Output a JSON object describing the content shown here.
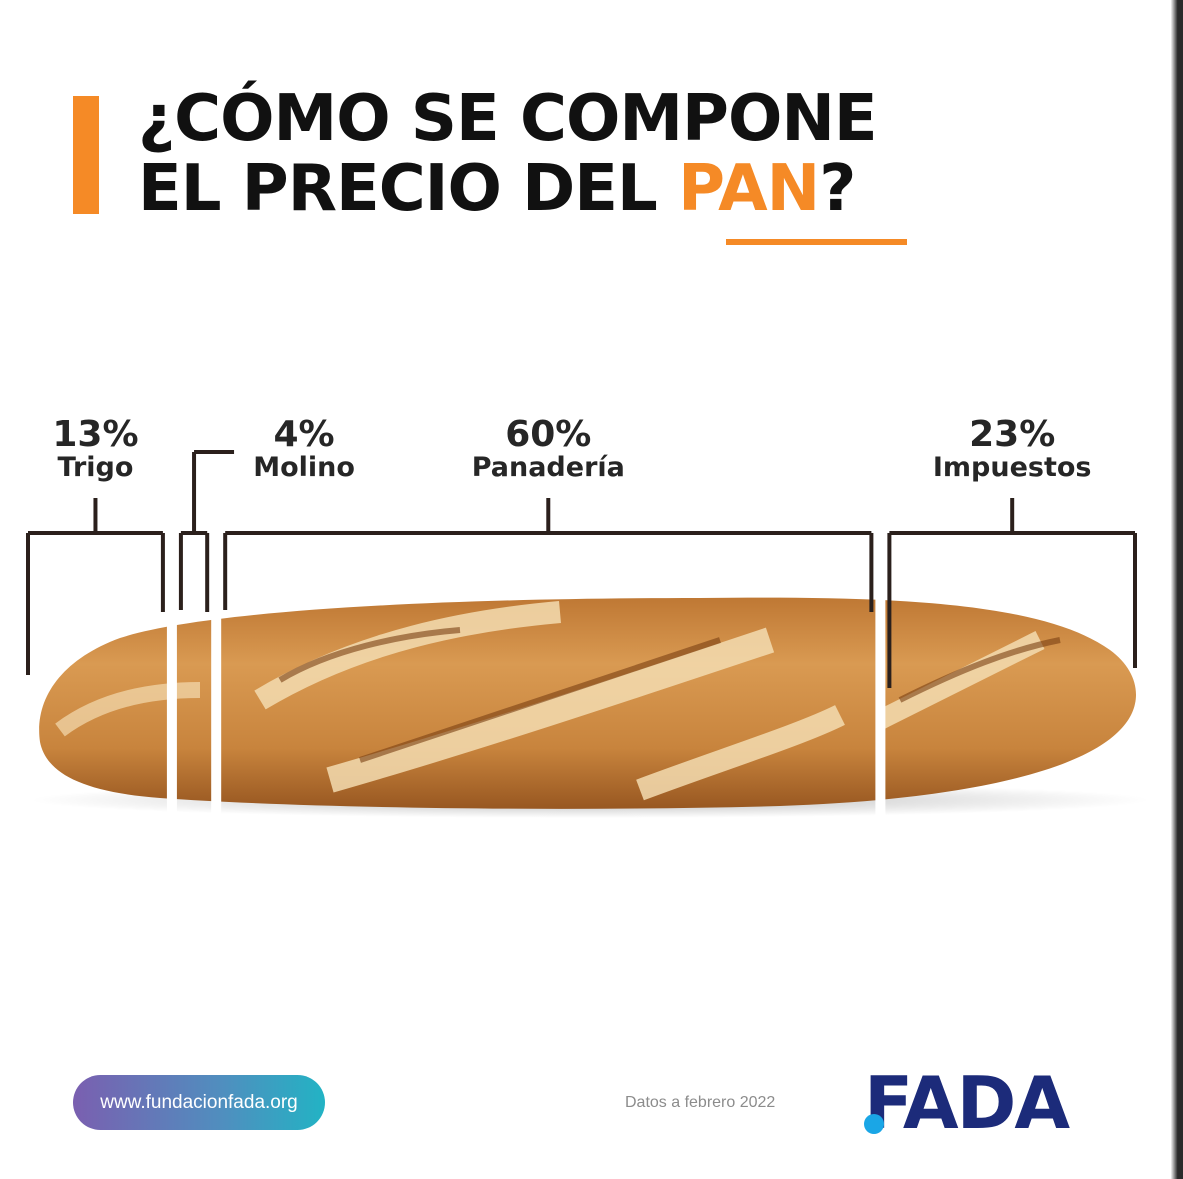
{
  "title": {
    "line1": "¿CÓMO SE COMPONE",
    "line2_prefix": "EL PRECIO DEL ",
    "line2_accent": "PAN",
    "line2_suffix": "?"
  },
  "colors": {
    "accent": "#f58a26",
    "text": "#111111",
    "bracket": "#2b201c",
    "logo_navy": "#1c2b7a",
    "logo_cyan": "#1aa6e6",
    "bread": "#c98a45"
  },
  "chart_data": {
    "type": "bar",
    "orientation": "horizontal-stacked",
    "categories": [
      "Trigo",
      "Molino",
      "Panadería",
      "Impuestos"
    ],
    "values": [
      13,
      4,
      60,
      23
    ],
    "value_labels": [
      "13%",
      "4%",
      "60%",
      "23%"
    ],
    "unit": "%",
    "title": "¿CÓMO SE COMPONE EL PRECIO DEL PAN?"
  },
  "footer": {
    "url": "www.fundacionfada.org",
    "note": "Datos a febrero 2022",
    "logo": "FADA"
  },
  "icons": [
    "bread-illustration",
    "fada-logo"
  ]
}
